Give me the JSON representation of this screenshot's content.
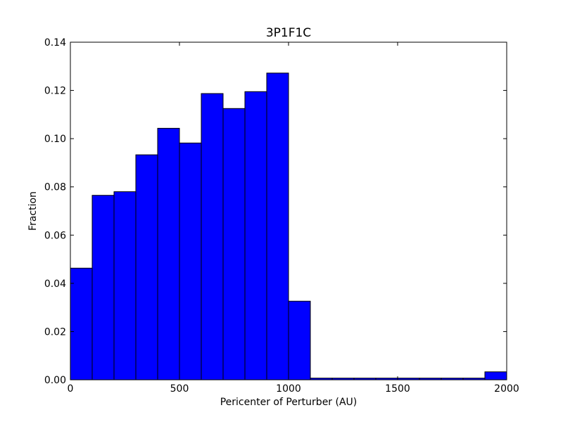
{
  "chart_data": {
    "type": "bar",
    "title": "3P1F1C",
    "xlabel": "Pericenter of Perturber (AU)",
    "ylabel": "Fraction",
    "xlim": [
      0,
      2000
    ],
    "ylim": [
      0,
      0.14
    ],
    "x_ticks": [
      "0",
      "500",
      "1000",
      "1500",
      "2000"
    ],
    "y_ticks": [
      "0.00",
      "0.02",
      "0.04",
      "0.06",
      "0.08",
      "0.10",
      "0.12",
      "0.14"
    ],
    "bin_width": 100,
    "bin_starts": [
      0,
      100,
      200,
      300,
      400,
      500,
      600,
      700,
      800,
      900,
      1000,
      1100,
      1200,
      1300,
      1400,
      1500,
      1600,
      1700,
      1800,
      1900
    ],
    "values": [
      0.0463,
      0.0765,
      0.078,
      0.0933,
      0.1043,
      0.0982,
      0.1187,
      0.1125,
      0.1195,
      0.1272,
      0.0326,
      0.0007,
      0.0007,
      0.0007,
      0.0007,
      0.0007,
      0.0007,
      0.0007,
      0.0007,
      0.0033
    ],
    "bar_color": "#0000ff",
    "edge_color": "#000000",
    "grid": false
  }
}
